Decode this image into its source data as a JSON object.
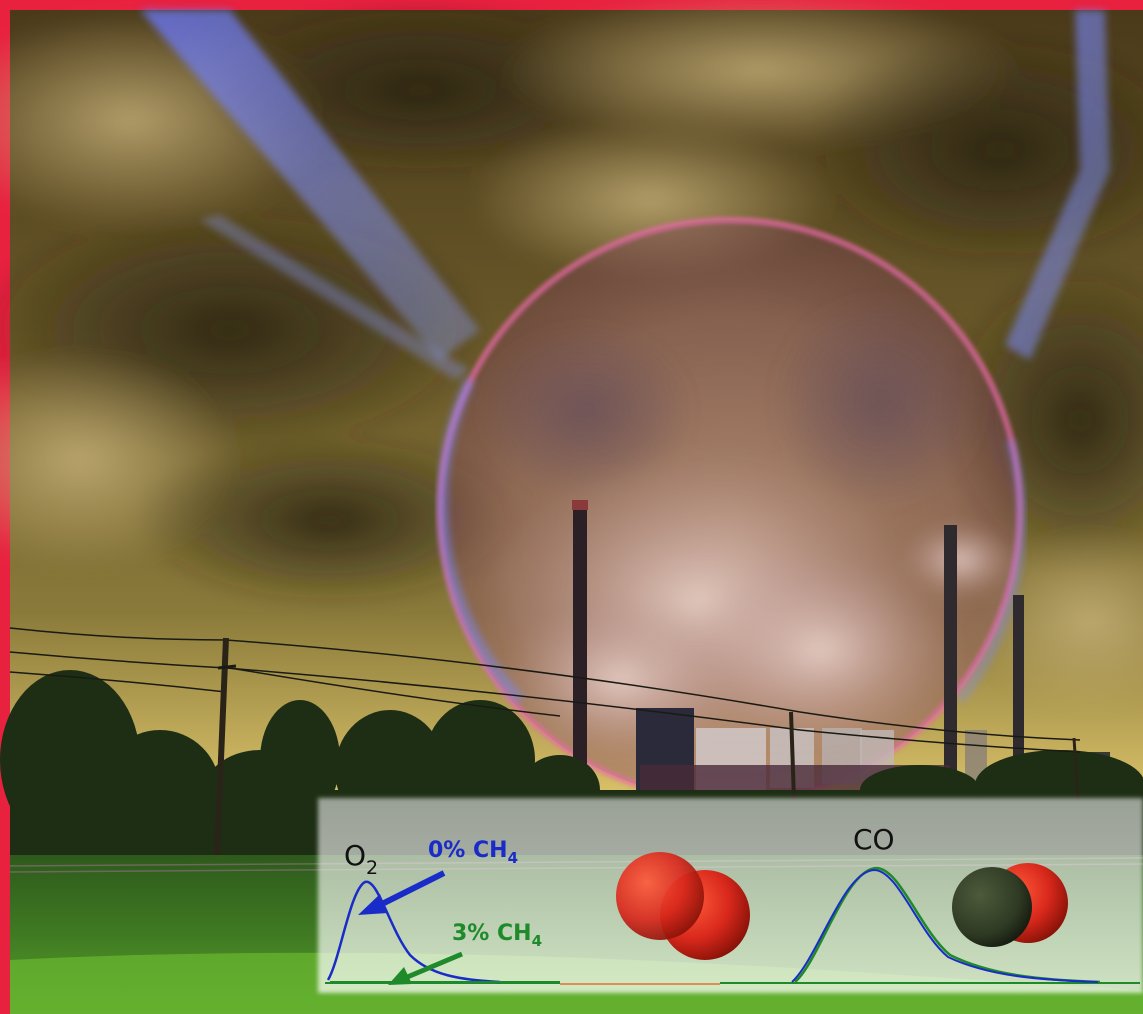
{
  "frame_color": "#e8213f",
  "labels": {
    "o2_main": "O",
    "o2_sub": "2",
    "ch4_0_main": "0% CH",
    "ch4_0_sub": "4",
    "ch4_3_main": "3% CH",
    "ch4_3_sub": "4",
    "co": "CO"
  },
  "colors": {
    "zero_ch4": "#1a2cc8",
    "three_ch4": "#1e8a2a",
    "oxygen_atom": "#d8281c",
    "carbon_atom": "#2f3a24"
  }
}
